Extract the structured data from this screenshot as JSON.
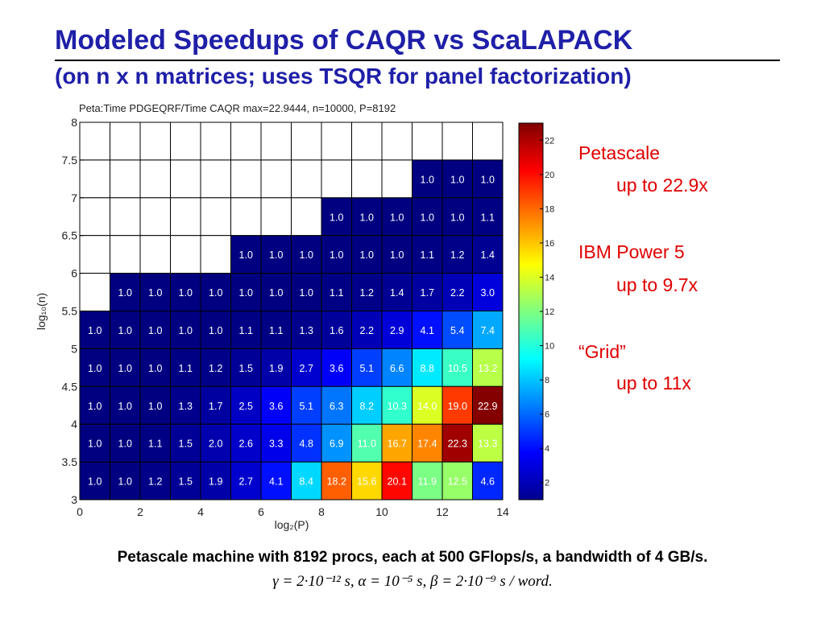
{
  "slide": {
    "title": "Modeled Speedups of CAQR vs ScaLAPACK",
    "subtitle": "(on n x n matrices; uses TSQR for panel factorization)",
    "side_notes": [
      {
        "label": "Petascale",
        "value": "up to 22.9x"
      },
      {
        "label": "IBM Power 5",
        "value": "up to 9.7x"
      },
      {
        "label": "“Grid”",
        "value": "up to 11x"
      }
    ],
    "footnote": "Petascale machine with 8192 procs, each at 500 GFlops/s, a bandwidth of 4 GB/s.",
    "formula": "γ = 2·10⁻¹² s, α = 10⁻⁵ s, β = 2·10⁻⁹ s / word."
  },
  "chart_data": {
    "type": "heatmap",
    "title": "Peta:Time PDGEQRF/Time CAQR  max=22.9444, n=10000, P=8192",
    "xlabel": "log₂(P)",
    "ylabel": "log₁₀(n)",
    "xlim": [
      0,
      14
    ],
    "ylim": [
      3,
      8
    ],
    "x_ticks": [
      0,
      2,
      4,
      6,
      8,
      10,
      12,
      14
    ],
    "y_ticks": [
      3,
      3.5,
      4,
      4.5,
      5,
      5.5,
      6,
      6.5,
      7,
      7.5,
      8
    ],
    "colorbar_ticks": [
      2,
      4,
      6,
      8,
      10,
      12,
      14,
      16,
      18,
      20,
      22
    ],
    "colorbar_range": [
      1,
      23
    ],
    "colormap": "jet",
    "x_centers": [
      0.5,
      1.5,
      2.5,
      3.5,
      4.5,
      5.5,
      6.5,
      7.5,
      8.5,
      9.5,
      10.5,
      11.5,
      12.5,
      13.5
    ],
    "y_centers": [
      7.25,
      6.75,
      6.25,
      5.75,
      5.25,
      4.75,
      4.25,
      3.75,
      3.25
    ],
    "cell_labels": [
      [
        "",
        "",
        "",
        "",
        "",
        "",
        "",
        "",
        "",
        "",
        "",
        "1.0",
        "1.0",
        "1.0"
      ],
      [
        "",
        "",
        "",
        "",
        "",
        "",
        "",
        "",
        "1.0",
        "1.0",
        "1.0",
        "1.0",
        "1.0",
        "1.1"
      ],
      [
        "",
        "",
        "",
        "",
        "",
        "1.0",
        "1.0",
        "1.0",
        "1.0",
        "1.0",
        "1.0",
        "1.1",
        "1.2",
        "1.4"
      ],
      [
        "",
        "1.0",
        "1.0",
        "1.0",
        "1.0",
        "1.0",
        "1.0",
        "1.0",
        "1.1",
        "1.2",
        "1.4",
        "1.7",
        "2.2",
        "3.0"
      ],
      [
        "1.0",
        "1.0",
        "1.0",
        "1.0",
        "1.0",
        "1.1",
        "1.1",
        "1.3",
        "1.6",
        "2.2",
        "2.9",
        "4.1",
        "5.4",
        "7.4"
      ],
      [
        "1.0",
        "1.0",
        "1.0",
        "1.1",
        "1.2",
        "1.5",
        "1.9",
        "2.7",
        "3.6",
        "5.1",
        "6.6",
        "8.8",
        "10.5",
        "13.2"
      ],
      [
        "1.0",
        "1.0",
        "1.0",
        "1.3",
        "1.7",
        "2.5",
        "3.6",
        "5.1",
        "6.3",
        "8.2",
        "10.3",
        "14.0",
        "19.0",
        "22.9"
      ],
      [
        "1.0",
        "1.0",
        "1.1",
        "1.5",
        "2.0",
        "2.6",
        "3.3",
        "4.8",
        "6.9",
        "11.0",
        "16.7",
        "17.4",
        "22.3",
        "13.3"
      ],
      [
        "1.0",
        "1.0",
        "1.2",
        "1.5",
        "1.9",
        "2.7",
        "4.1",
        "8.4",
        "18.2",
        "15.6",
        "20.1",
        "11.9",
        "12.5",
        "4.6"
      ]
    ],
    "grid": true
  }
}
